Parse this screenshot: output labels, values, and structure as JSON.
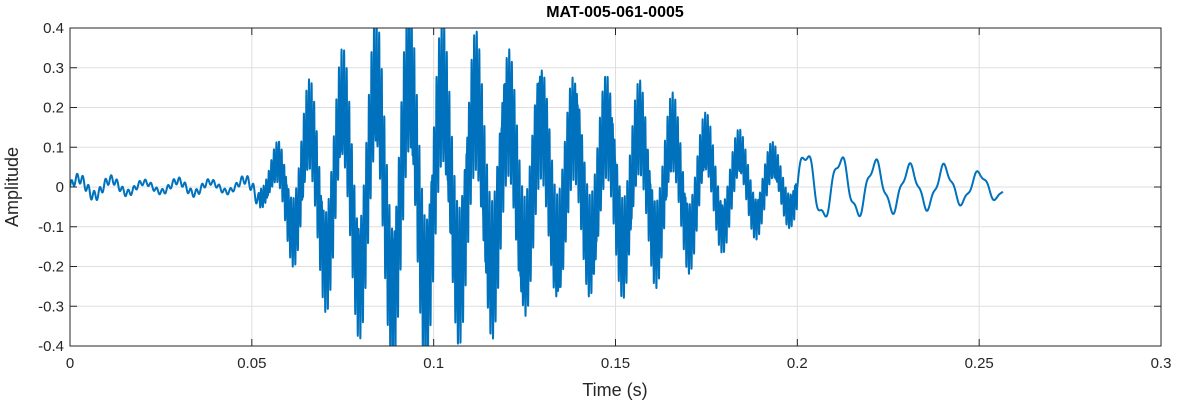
{
  "chart_data": {
    "type": "line",
    "title": "MAT-005-061-0005",
    "xlabel": "Time (s)",
    "ylabel": "Amplitude",
    "xlim": [
      0,
      0.3
    ],
    "ylim": [
      -0.4,
      0.4
    ],
    "xticks": [
      0,
      0.05,
      0.1,
      0.15,
      0.2,
      0.25,
      0.3
    ],
    "xtick_labels": [
      "0",
      "0.05",
      "0.1",
      "0.15",
      "0.2",
      "0.25",
      "0.3"
    ],
    "yticks": [
      -0.4,
      -0.3,
      -0.2,
      -0.1,
      0,
      0.1,
      0.2,
      0.3,
      0.4
    ],
    "ytick_labels": [
      "-0.4",
      "-0.3",
      "-0.2",
      "-0.1",
      "0",
      "0.1",
      "0.2",
      "0.3",
      "0.4"
    ],
    "grid": true,
    "legend": "none",
    "colors": {
      "line": "#0072BD",
      "grid": "#dfdfdf",
      "axis": "#262626"
    },
    "series": [
      {
        "x": [
          0,
          0.005,
          0.01,
          0.015,
          0.02,
          0.025,
          0.03,
          0.035,
          0.04,
          0.045,
          0.05,
          0.055,
          0.06,
          0.065,
          0.07,
          0.075,
          0.08,
          0.085,
          0.09,
          0.095,
          0.1,
          0.105,
          0.11,
          0.115,
          0.12,
          0.125,
          0.13,
          0.135,
          0.14,
          0.145,
          0.15,
          0.155,
          0.16,
          0.165,
          0.17,
          0.175,
          0.18,
          0.185,
          0.19,
          0.195,
          0.2,
          0.205,
          0.21,
          0.215,
          0.22,
          0.225,
          0.23,
          0.235,
          0.24,
          0.245,
          0.25,
          0.255,
          0.2565
        ],
        "envelope": [
          0.025,
          0.03,
          0.025,
          0.02,
          0.015,
          0.015,
          0.02,
          0.02,
          0.015,
          0.015,
          0.03,
          0.07,
          0.16,
          0.23,
          0.27,
          0.3,
          0.33,
          0.37,
          0.39,
          0.4,
          0.38,
          0.36,
          0.36,
          0.37,
          0.34,
          0.33,
          0.31,
          0.29,
          0.28,
          0.27,
          0.27,
          0.25,
          0.23,
          0.21,
          0.19,
          0.16,
          0.14,
          0.12,
          0.11,
          0.09,
          0.09,
          0.08,
          0.07,
          0.07,
          0.06,
          0.06,
          0.05,
          0.05,
          0.05,
          0.04,
          0.035,
          0.03,
          0.02
        ]
      }
    ]
  }
}
